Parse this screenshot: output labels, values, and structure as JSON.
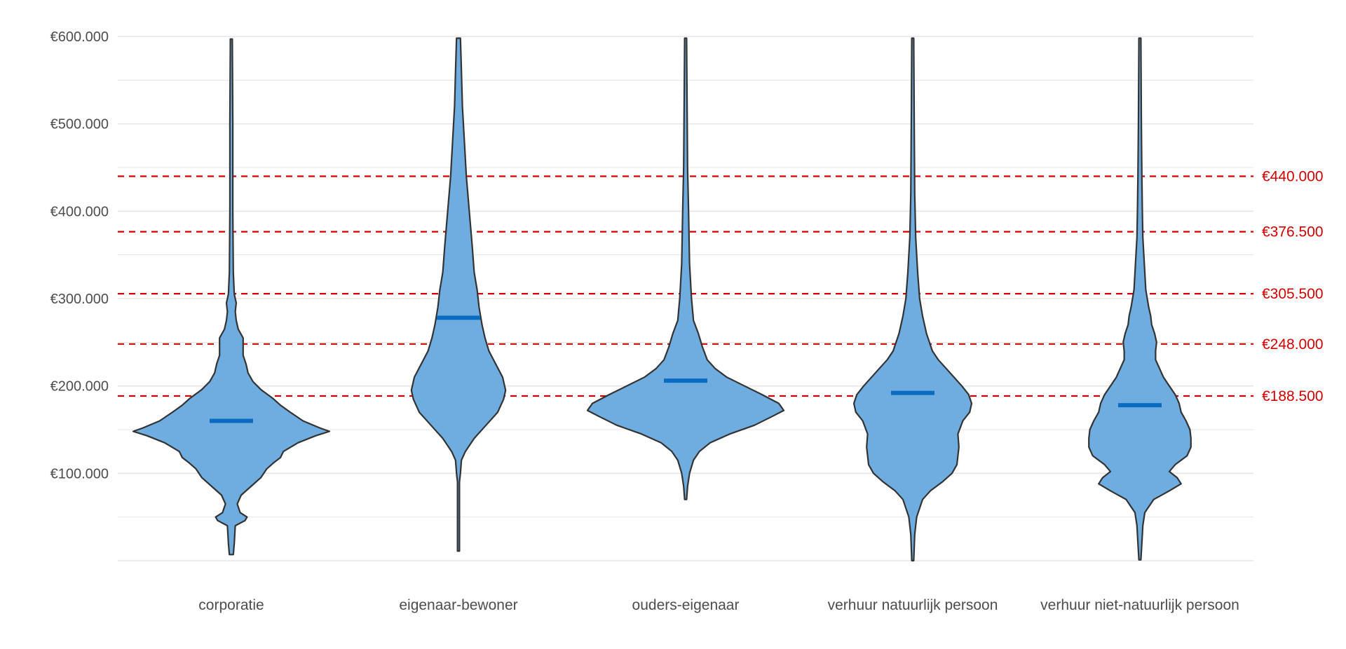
{
  "chart_data": {
    "type": "violin",
    "title": "",
    "xlabel": "",
    "ylabel": "",
    "ylim": [
      0,
      600000
    ],
    "grid": true,
    "legend": "none",
    "y_ticks": [
      {
        "value": 100000,
        "label": "€100.000"
      },
      {
        "value": 200000,
        "label": "€200.000"
      },
      {
        "value": 300000,
        "label": "€300.000"
      },
      {
        "value": 400000,
        "label": "€400.000"
      },
      {
        "value": 500000,
        "label": "€500.000"
      },
      {
        "value": 600000,
        "label": "€600.000"
      }
    ],
    "categories": [
      "corporatie",
      "eigenaar-bewoner",
      "ouders-eigenaar",
      "verhuur natuurlijk persoon",
      "verhuur niet-natuurlijk persoon"
    ],
    "medians": [
      160000,
      278000,
      206000,
      192000,
      178000
    ],
    "reference_lines": [
      {
        "value": 440000,
        "label": "€440.000"
      },
      {
        "value": 376500,
        "label": "€376.500"
      },
      {
        "value": 305500,
        "label": "€305.500"
      },
      {
        "value": 248000,
        "label": "€248.000"
      },
      {
        "value": 188500,
        "label": "€188.500"
      }
    ],
    "density_profiles": [
      [
        [
          7000,
          0.02
        ],
        [
          20000,
          0.03
        ],
        [
          40000,
          0.04
        ],
        [
          46000,
          0.14
        ],
        [
          50000,
          0.16
        ],
        [
          55000,
          0.09
        ],
        [
          65000,
          0.06
        ],
        [
          75000,
          0.1
        ],
        [
          85000,
          0.2
        ],
        [
          95000,
          0.3
        ],
        [
          105000,
          0.36
        ],
        [
          112000,
          0.43
        ],
        [
          118000,
          0.5
        ],
        [
          125000,
          0.53
        ],
        [
          135000,
          0.68
        ],
        [
          143000,
          0.86
        ],
        [
          148000,
          1.0
        ],
        [
          152000,
          0.9
        ],
        [
          160000,
          0.73
        ],
        [
          170000,
          0.6
        ],
        [
          178000,
          0.5
        ],
        [
          186000,
          0.42
        ],
        [
          196000,
          0.3
        ],
        [
          205000,
          0.22
        ],
        [
          215000,
          0.17
        ],
        [
          225000,
          0.15
        ],
        [
          235000,
          0.12
        ],
        [
          245000,
          0.12
        ],
        [
          255000,
          0.12
        ],
        [
          265000,
          0.07
        ],
        [
          275000,
          0.05
        ],
        [
          285000,
          0.04
        ],
        [
          295000,
          0.05
        ],
        [
          305000,
          0.03
        ],
        [
          330000,
          0.02
        ],
        [
          400000,
          0.015
        ],
        [
          500000,
          0.015
        ],
        [
          597000,
          0.01
        ]
      ],
      [
        [
          11000,
          0.01
        ],
        [
          50000,
          0.01
        ],
        [
          90000,
          0.01
        ],
        [
          100000,
          0.02
        ],
        [
          115000,
          0.03
        ],
        [
          125000,
          0.07
        ],
        [
          140000,
          0.16
        ],
        [
          155000,
          0.28
        ],
        [
          170000,
          0.4
        ],
        [
          185000,
          0.46
        ],
        [
          195000,
          0.48
        ],
        [
          210000,
          0.45
        ],
        [
          225000,
          0.38
        ],
        [
          240000,
          0.31
        ],
        [
          255000,
          0.27
        ],
        [
          270000,
          0.24
        ],
        [
          290000,
          0.21
        ],
        [
          310000,
          0.19
        ],
        [
          330000,
          0.16
        ],
        [
          360000,
          0.14
        ],
        [
          400000,
          0.11
        ],
        [
          440000,
          0.08
        ],
        [
          480000,
          0.06
        ],
        [
          520000,
          0.04
        ],
        [
          560000,
          0.03
        ],
        [
          598000,
          0.02
        ]
      ],
      [
        [
          70000,
          0.01
        ],
        [
          85000,
          0.02
        ],
        [
          100000,
          0.04
        ],
        [
          115000,
          0.08
        ],
        [
          125000,
          0.14
        ],
        [
          135000,
          0.25
        ],
        [
          145000,
          0.45
        ],
        [
          155000,
          0.7
        ],
        [
          165000,
          0.88
        ],
        [
          172000,
          1.0
        ],
        [
          180000,
          0.95
        ],
        [
          190000,
          0.78
        ],
        [
          200000,
          0.6
        ],
        [
          210000,
          0.42
        ],
        [
          220000,
          0.3
        ],
        [
          230000,
          0.22
        ],
        [
          245000,
          0.17
        ],
        [
          260000,
          0.13
        ],
        [
          275000,
          0.08
        ],
        [
          300000,
          0.06
        ],
        [
          340000,
          0.04
        ],
        [
          400000,
          0.03
        ],
        [
          450000,
          0.02
        ],
        [
          520000,
          0.015
        ],
        [
          598000,
          0.01
        ]
      ],
      [
        [
          0,
          0.01
        ],
        [
          30000,
          0.02
        ],
        [
          50000,
          0.04
        ],
        [
          60000,
          0.07
        ],
        [
          70000,
          0.1
        ],
        [
          80000,
          0.18
        ],
        [
          90000,
          0.3
        ],
        [
          100000,
          0.4
        ],
        [
          110000,
          0.45
        ],
        [
          120000,
          0.46
        ],
        [
          130000,
          0.47
        ],
        [
          145000,
          0.46
        ],
        [
          160000,
          0.51
        ],
        [
          170000,
          0.58
        ],
        [
          180000,
          0.6
        ],
        [
          190000,
          0.57
        ],
        [
          200000,
          0.5
        ],
        [
          210000,
          0.42
        ],
        [
          220000,
          0.34
        ],
        [
          230000,
          0.26
        ],
        [
          240000,
          0.2
        ],
        [
          260000,
          0.14
        ],
        [
          280000,
          0.1
        ],
        [
          300000,
          0.07
        ],
        [
          330000,
          0.05
        ],
        [
          370000,
          0.03
        ],
        [
          420000,
          0.02
        ],
        [
          500000,
          0.015
        ],
        [
          598000,
          0.01
        ]
      ],
      [
        [
          1000,
          0.01
        ],
        [
          20000,
          0.02
        ],
        [
          40000,
          0.03
        ],
        [
          55000,
          0.05
        ],
        [
          70000,
          0.14
        ],
        [
          80000,
          0.3
        ],
        [
          88000,
          0.42
        ],
        [
          95000,
          0.38
        ],
        [
          102000,
          0.3
        ],
        [
          110000,
          0.36
        ],
        [
          120000,
          0.48
        ],
        [
          130000,
          0.52
        ],
        [
          140000,
          0.52
        ],
        [
          150000,
          0.51
        ],
        [
          160000,
          0.47
        ],
        [
          170000,
          0.42
        ],
        [
          180000,
          0.4
        ],
        [
          190000,
          0.36
        ],
        [
          200000,
          0.3
        ],
        [
          210000,
          0.24
        ],
        [
          220000,
          0.2
        ],
        [
          230000,
          0.16
        ],
        [
          240000,
          0.16
        ],
        [
          250000,
          0.17
        ],
        [
          260000,
          0.15
        ],
        [
          270000,
          0.12
        ],
        [
          280000,
          0.11
        ],
        [
          290000,
          0.09
        ],
        [
          310000,
          0.06
        ],
        [
          330000,
          0.05
        ],
        [
          350000,
          0.04
        ],
        [
          370000,
          0.03
        ],
        [
          400000,
          0.025
        ],
        [
          440000,
          0.02
        ],
        [
          500000,
          0.015
        ],
        [
          598000,
          0.01
        ]
      ]
    ],
    "colors": {
      "violin_fill": "#6fade0",
      "violin_stroke": "#333333",
      "median": "#0a6cc0",
      "reference_line": "#d40000",
      "grid": "#e6e6e6",
      "tick_text": "#4d4d4d"
    }
  }
}
